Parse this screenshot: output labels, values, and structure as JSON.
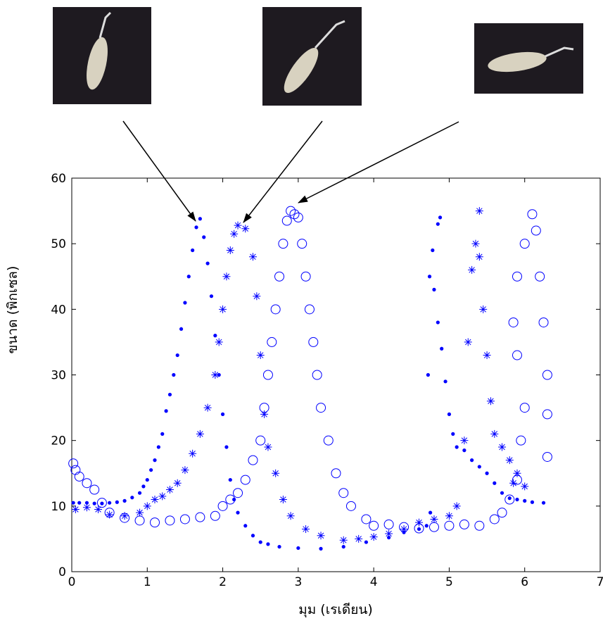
{
  "chart_data": {
    "type": "scatter",
    "xlabel": "มุม (เรเดียน)",
    "ylabel": "ขนาด (พิกเซล)",
    "xlim": [
      0,
      7
    ],
    "ylim": [
      0,
      60
    ],
    "xticks": [
      0,
      1,
      2,
      3,
      4,
      5,
      6,
      7
    ],
    "yticks": [
      0,
      10,
      20,
      30,
      40,
      50,
      60
    ],
    "grid": false,
    "series": [
      {
        "marker": "dot",
        "color": "#0000ff",
        "x": [
          0.02,
          0.1,
          0.2,
          0.3,
          0.4,
          0.5,
          0.6,
          0.7,
          0.8,
          0.9,
          0.95,
          1.0,
          1.05,
          1.1,
          1.15,
          1.2,
          1.25,
          1.3,
          1.35,
          1.4,
          1.45,
          1.5,
          1.55,
          1.6,
          1.65,
          1.7,
          1.75,
          1.8,
          1.85,
          1.9,
          1.95,
          2.0,
          2.05,
          2.1,
          2.15,
          2.2,
          2.3,
          2.4,
          2.5,
          2.6,
          2.75,
          3.0,
          3.3,
          3.6,
          3.9,
          4.2,
          4.4,
          4.6,
          4.7,
          4.75,
          4.72,
          4.74,
          4.78,
          4.85,
          4.88,
          4.8,
          4.85,
          4.9,
          4.95,
          5.0,
          5.05,
          5.1,
          5.2,
          5.3,
          5.4,
          5.5,
          5.6,
          5.7,
          5.8,
          5.9,
          6.0,
          6.1,
          6.25
        ],
        "values": [
          10.5,
          10.5,
          10.5,
          10.4,
          10.4,
          10.5,
          10.6,
          10.8,
          11.3,
          12,
          13,
          14,
          15.5,
          17,
          19,
          21,
          24.5,
          27,
          30,
          33,
          37,
          41,
          45,
          49,
          52.5,
          53.8,
          51,
          47,
          42,
          36,
          30,
          24,
          19,
          14,
          11,
          9,
          7,
          5.5,
          4.5,
          4.2,
          3.8,
          3.6,
          3.5,
          3.8,
          4.5,
          5.2,
          6,
          6.5,
          7,
          9,
          30,
          45,
          49,
          53,
          54,
          43,
          38,
          34,
          29,
          24,
          21,
          19,
          18.5,
          17,
          16,
          15,
          13.5,
          12,
          11.2,
          11,
          10.8,
          10.6,
          10.5
        ]
      },
      {
        "marker": "star",
        "color": "#0000ff",
        "x": [
          0.05,
          0.2,
          0.35,
          0.5,
          0.7,
          0.9,
          1.0,
          1.1,
          1.2,
          1.3,
          1.4,
          1.5,
          1.6,
          1.7,
          1.8,
          1.9,
          1.95,
          2.0,
          2.05,
          2.1,
          2.15,
          2.2,
          2.3,
          2.4,
          2.45,
          2.5,
          2.55,
          2.6,
          2.7,
          2.8,
          2.9,
          3.1,
          3.3,
          3.6,
          3.8,
          4.0,
          4.2,
          4.4,
          4.6,
          4.8,
          5.0,
          5.1,
          5.2,
          5.25,
          5.3,
          5.35,
          5.4,
          5.4,
          5.45,
          5.5,
          5.55,
          5.6,
          5.7,
          5.8,
          5.9,
          6.0,
          5.85
        ],
        "values": [
          9.5,
          9.8,
          9.5,
          8.7,
          8.5,
          9,
          10,
          11,
          11.5,
          12.5,
          13.5,
          15.5,
          18,
          21,
          25,
          30,
          35,
          40,
          45,
          49,
          51.5,
          52.8,
          52.3,
          48,
          42,
          33,
          24,
          19,
          15,
          11,
          8.5,
          6.5,
          5.5,
          4.8,
          5,
          5.3,
          5.8,
          6.5,
          7.5,
          8,
          8.5,
          10,
          20,
          35,
          46,
          50,
          55,
          48,
          40,
          33,
          26,
          21,
          19,
          17,
          15,
          13,
          13.5
        ]
      },
      {
        "marker": "circle",
        "color": "#0000ff",
        "x": [
          0.02,
          0.05,
          0.1,
          0.2,
          0.3,
          0.4,
          0.5,
          0.7,
          0.9,
          1.1,
          1.3,
          1.5,
          1.7,
          1.9,
          2.0,
          2.1,
          2.2,
          2.3,
          2.4,
          2.5,
          2.55,
          2.6,
          2.65,
          2.7,
          2.75,
          2.8,
          2.85,
          2.9,
          2.95,
          3.0,
          3.05,
          3.1,
          3.15,
          3.2,
          3.25,
          3.3,
          3.4,
          3.5,
          3.6,
          3.7,
          3.9,
          4.0,
          4.2,
          4.4,
          4.6,
          4.8,
          5.0,
          5.2,
          5.4,
          5.6,
          5.7,
          5.8,
          5.9,
          5.95,
          6.0,
          5.9,
          5.85,
          5.9,
          6.0,
          6.1,
          6.15,
          6.2,
          6.25,
          6.3,
          6.3,
          6.3
        ],
        "values": [
          16.5,
          15.5,
          14.5,
          13.5,
          12.5,
          10.5,
          9,
          8.2,
          7.8,
          7.5,
          7.8,
          8,
          8.3,
          8.5,
          10,
          11,
          12,
          14,
          17,
          20,
          25,
          30,
          35,
          40,
          45,
          50,
          53.5,
          55,
          54.5,
          54,
          50,
          45,
          40,
          35,
          30,
          25,
          20,
          15,
          12,
          10,
          8,
          7,
          7.2,
          6.8,
          6.6,
          6.8,
          7,
          7.2,
          7,
          8,
          9,
          11,
          14,
          20,
          25,
          33,
          38,
          45,
          50,
          54.5,
          52,
          45,
          38,
          30,
          24,
          17.5
        ]
      }
    ]
  }
}
